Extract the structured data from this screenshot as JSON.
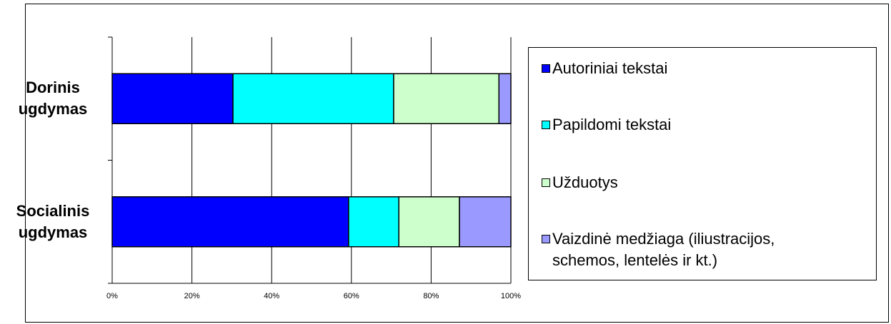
{
  "chart_data": {
    "type": "bar",
    "orientation": "horizontal",
    "stacked": "percent",
    "categories": [
      "Dorinis ugdymas",
      "Socialinis ugdymas"
    ],
    "category_label_lines": [
      [
        "Dorinis",
        "ugdymas"
      ],
      [
        "Socialinis",
        "ugdymas"
      ]
    ],
    "series": [
      {
        "name": "Autoriniai tekstai",
        "color": "#0000ff",
        "values": [
          30.3,
          59.3
        ]
      },
      {
        "name": "Papildomi tekstai",
        "color": "#00ffff",
        "values": [
          40.3,
          12.6
        ]
      },
      {
        "name": "Užduotys",
        "color": "#ccffcc",
        "values": [
          26.4,
          15.2
        ]
      },
      {
        "name": "Vaizdinė medžiaga (iliustracijos, schemos, lentelės ir kt.)",
        "label_lines": [
          "Vaizdinė medžiaga (iliustracijos,",
          "schemos, lentelės ir kt.)"
        ],
        "color": "#9999ff",
        "values": [
          3.0,
          12.9
        ]
      }
    ],
    "xlim": [
      0,
      100
    ],
    "xticks": [
      "0%",
      "20%",
      "40%",
      "60%",
      "80%",
      "100%"
    ],
    "grid": true,
    "legend": "right",
    "title": "",
    "xlabel": "",
    "ylabel": ""
  }
}
